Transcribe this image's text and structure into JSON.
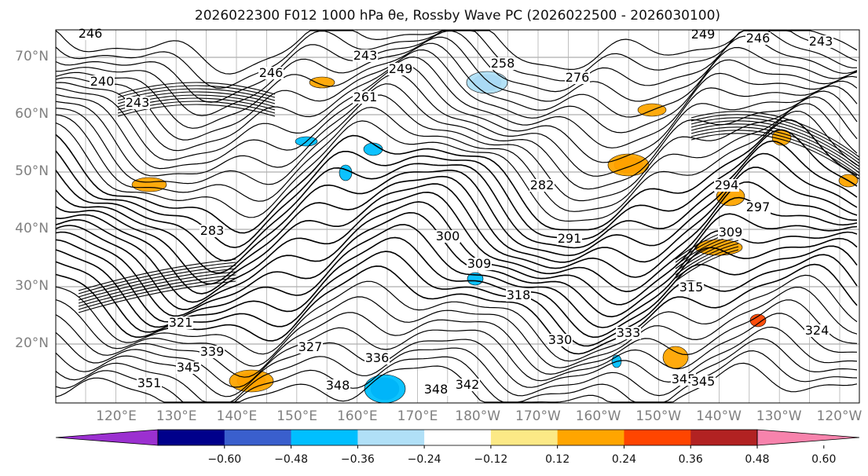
{
  "title": "2026022300 F012 1000 hPa θe, Rossby Wave PC (2026022500 - 2026030100)",
  "lat_labels": [
    "70°N",
    "60°N",
    "50°N",
    "40°N",
    "30°N",
    "20°N"
  ],
  "lon_labels": [
    "120°E",
    "130°E",
    "140°E",
    "150°E",
    "160°E",
    "170°E",
    "180°W",
    "170°W",
    "160°W",
    "150°W",
    "140°W",
    "130°W",
    "120°W"
  ],
  "colorbar": {
    "colors": [
      "#9b30d0",
      "#00008b",
      "#3a5fcd",
      "#00bfff",
      "#b0e0f7",
      "#ffffff",
      "#fce986",
      "#ffa500",
      "#ff4500",
      "#b22222",
      "#f783ac"
    ],
    "tick_labels": [
      "−0.60",
      "−0.48",
      "−0.36",
      "−0.24",
      "−0.12",
      "0.12",
      "0.24",
      "0.36",
      "0.48",
      "0.60"
    ]
  },
  "contour_labels": [
    "246",
    "240",
    "243",
    "243",
    "249",
    "246",
    "261",
    "258",
    "276",
    "243",
    "249",
    "246",
    "282",
    "291",
    "294",
    "297",
    "283",
    "300",
    "309",
    "318",
    "327",
    "321",
    "330",
    "333",
    "339",
    "336",
    "345",
    "351",
    "348",
    "345",
    "342",
    "348",
    "345",
    "324",
    "315",
    "309"
  ]
}
